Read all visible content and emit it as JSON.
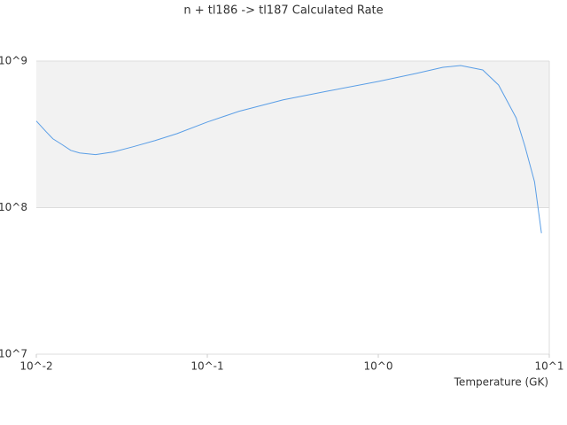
{
  "chart_data": {
    "type": "line",
    "title": "n + tl186 -> tl187 Calculated Rate",
    "x_label": "Temperature (GK)",
    "x": [
      0.01,
      0.0114,
      0.0125,
      0.0141,
      0.0159,
      0.0179,
      0.0222,
      0.0282,
      0.0367,
      0.0495,
      0.0666,
      0.1,
      0.153,
      0.278,
      0.506,
      1.0,
      1.67,
      2.39,
      3.03,
      4.08,
      5.05,
      6.4,
      7.2,
      8.2,
      9.0
    ],
    "series": [
      {
        "name": "rate",
        "color": "#5a9ee6",
        "values": [
          390000000,
          330000000,
          295000000,
          270000000,
          246000000,
          236000000,
          230000000,
          240000000,
          260000000,
          287000000,
          320000000,
          384000000,
          454000000,
          544000000,
          624000000,
          726000000,
          824000000,
          907000000,
          933000000,
          870000000,
          687000000,
          410000000,
          263000000,
          150000000,
          67000000
        ]
      }
    ],
    "xlim": [
      0.01,
      10
    ],
    "ylim": [
      10000000,
      1000000000
    ],
    "xticks": [
      {
        "value": 0.01,
        "label": "10^-2"
      },
      {
        "value": 0.1,
        "label": "10^-1"
      },
      {
        "value": 1,
        "label": "10^0"
      },
      {
        "value": 10,
        "label": "10^1"
      }
    ],
    "yticks": [
      {
        "value": 10000000,
        "label": "10^7"
      },
      {
        "value": 100000000,
        "label": "10^8"
      },
      {
        "value": 1000000000,
        "label": "10^9"
      }
    ],
    "xscale": "log",
    "yscale": "log",
    "grid": true
  }
}
